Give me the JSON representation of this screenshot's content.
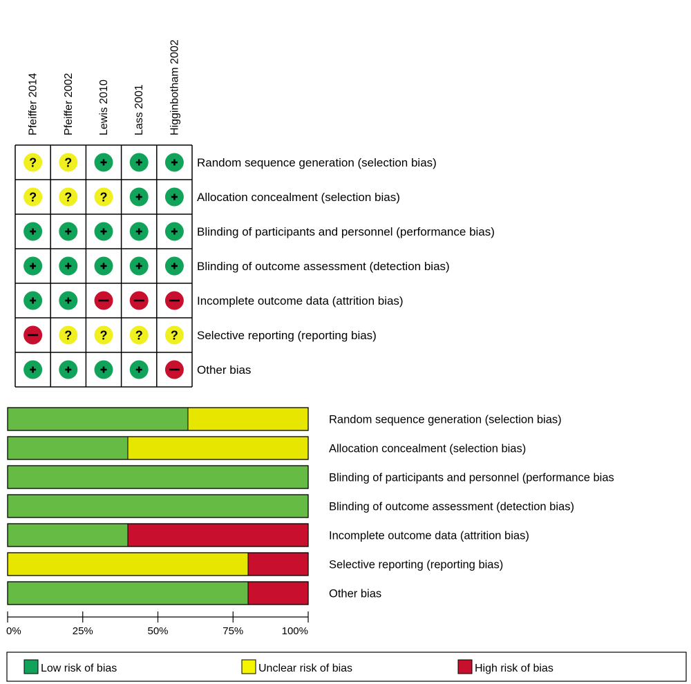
{
  "chart_data": [
    {
      "type": "table",
      "studies": [
        "Pfeiffer 2014",
        "Pfeiffer 2002",
        "Lewis 2010",
        "Lass 2001",
        "Higginbotham 2002"
      ],
      "domains": [
        "Random sequence generation (selection bias)",
        "Allocation concealment (selection bias)",
        "Blinding of participants and personnel (performance bias)",
        "Blinding of outcome assessment (detection bias)",
        "Incomplete outcome data (attrition bias)",
        "Selective reporting (reporting bias)",
        "Other bias"
      ],
      "judgements": [
        [
          "unclear",
          "unclear",
          "low",
          "low",
          "low"
        ],
        [
          "unclear",
          "unclear",
          "unclear",
          "low",
          "low"
        ],
        [
          "low",
          "low",
          "low",
          "low",
          "low"
        ],
        [
          "low",
          "low",
          "low",
          "low",
          "low"
        ],
        [
          "low",
          "low",
          "high",
          "high",
          "high"
        ],
        [
          "high",
          "unclear",
          "unclear",
          "unclear",
          "unclear"
        ],
        [
          "low",
          "low",
          "low",
          "low",
          "high"
        ]
      ],
      "symbols": {
        "low": "+",
        "unclear": "?",
        "high": "−"
      }
    },
    {
      "type": "bar",
      "stacked": true,
      "orientation": "horizontal",
      "categories": [
        "Random sequence generation (selection bias)",
        "Allocation concealment (selection bias)",
        "Blinding of participants and personnel (performance bias",
        "Blinding of outcome assessment (detection bias)",
        "Incomplete outcome data (attrition bias)",
        "Selective reporting (reporting bias)",
        "Other bias"
      ],
      "series": [
        {
          "name": "Low risk of bias",
          "key": "low",
          "values": [
            60,
            40,
            100,
            100,
            40,
            0,
            80
          ]
        },
        {
          "name": "Unclear risk of bias",
          "key": "unclear",
          "values": [
            40,
            60,
            0,
            0,
            0,
            80,
            0
          ]
        },
        {
          "name": "High risk of bias",
          "key": "high",
          "values": [
            0,
            0,
            0,
            0,
            60,
            20,
            20
          ]
        }
      ],
      "xlim": [
        0,
        100
      ],
      "ticks": [
        "0%",
        "25%",
        "50%",
        "75%",
        "100%"
      ],
      "legend_placement": "bottom"
    }
  ],
  "colors": {
    "low": "#66bb44",
    "unclear": "#e6e600",
    "high": "#c8102e",
    "low_dot": "#12a35a",
    "unclear_dot": "#f0f020",
    "high_dot": "#c8102e",
    "legend_low": "#12a35a",
    "legend_unclear": "#f5f500",
    "legend_high": "#c8102e"
  }
}
